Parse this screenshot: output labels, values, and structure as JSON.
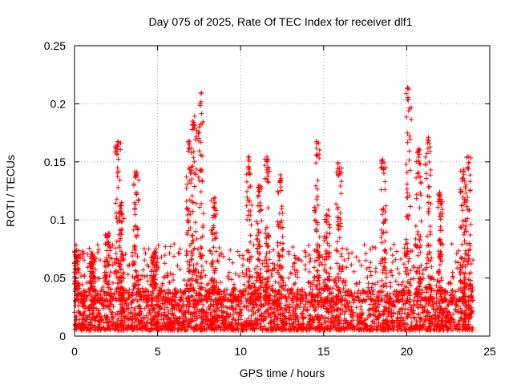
{
  "chart_data": {
    "type": "scatter",
    "title": "Day 075 of 2025, Rate Of TEC Index for receiver dlf1",
    "xlabel": "GPS time / hours",
    "ylabel": "ROTI / TECUs",
    "xlim": [
      0,
      25
    ],
    "ylim": [
      0,
      0.25
    ],
    "xticks": [
      0,
      5,
      10,
      15,
      20,
      25
    ],
    "xtick_labels": [
      "0",
      "5",
      "10",
      "15",
      "20",
      "25"
    ],
    "yticks": [
      0,
      0.05,
      0.1,
      0.15,
      0.2,
      0.25
    ],
    "ytick_labels": [
      "0",
      "0.05",
      "0.1",
      "0.15",
      "0.2",
      "0.25"
    ],
    "grid": true,
    "marker": "+",
    "series_color": "#ff0000",
    "data_x_range": [
      0,
      24
    ],
    "baseline_band": [
      0.005,
      0.04
    ],
    "peaks": [
      {
        "x": 0.1,
        "y": 0.075
      },
      {
        "x": 1.1,
        "y": 0.072
      },
      {
        "x": 2.0,
        "y": 0.09
      },
      {
        "x": 2.6,
        "y": 0.168
      },
      {
        "x": 2.8,
        "y": 0.115
      },
      {
        "x": 3.7,
        "y": 0.143
      },
      {
        "x": 4.8,
        "y": 0.075
      },
      {
        "x": 6.9,
        "y": 0.168
      },
      {
        "x": 7.2,
        "y": 0.19
      },
      {
        "x": 7.6,
        "y": 0.21
      },
      {
        "x": 8.4,
        "y": 0.12
      },
      {
        "x": 10.5,
        "y": 0.155
      },
      {
        "x": 11.1,
        "y": 0.13
      },
      {
        "x": 11.6,
        "y": 0.155
      },
      {
        "x": 12.4,
        "y": 0.142
      },
      {
        "x": 14.6,
        "y": 0.168
      },
      {
        "x": 15.2,
        "y": 0.11
      },
      {
        "x": 15.9,
        "y": 0.15
      },
      {
        "x": 18.6,
        "y": 0.152
      },
      {
        "x": 20.1,
        "y": 0.215
      },
      {
        "x": 20.7,
        "y": 0.163
      },
      {
        "x": 21.3,
        "y": 0.172
      },
      {
        "x": 22.0,
        "y": 0.125
      },
      {
        "x": 23.4,
        "y": 0.145
      },
      {
        "x": 23.7,
        "y": 0.155
      }
    ]
  }
}
